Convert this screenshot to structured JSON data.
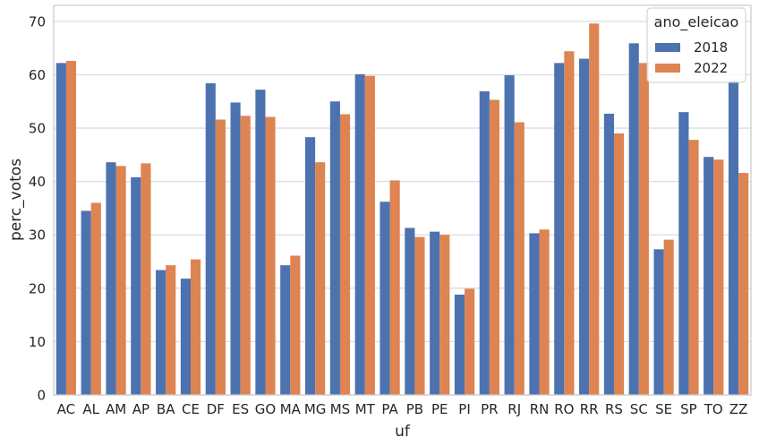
{
  "chart_data": {
    "type": "bar",
    "xlabel": "uf",
    "ylabel": "perc_votos",
    "ylim": [
      0,
      73
    ],
    "yticks": [
      0,
      10,
      20,
      30,
      40,
      50,
      60,
      70
    ],
    "grid": "horizontal",
    "legend_placement": "top-right",
    "legend_title": "ano_eleicao",
    "categories": [
      "AC",
      "AL",
      "AM",
      "AP",
      "BA",
      "CE",
      "DF",
      "ES",
      "GO",
      "MA",
      "MG",
      "MS",
      "MT",
      "PA",
      "PB",
      "PE",
      "PI",
      "PR",
      "RJ",
      "RN",
      "RO",
      "RR",
      "RS",
      "SC",
      "SE",
      "SP",
      "TO",
      "ZZ"
    ],
    "series": [
      {
        "name": "2018",
        "color": "#4c72b0",
        "values": [
          62.2,
          34.5,
          43.6,
          40.8,
          23.4,
          21.8,
          58.4,
          54.8,
          57.2,
          24.3,
          48.3,
          55.0,
          60.1,
          36.2,
          31.3,
          30.6,
          18.8,
          56.9,
          59.9,
          30.3,
          62.2,
          63.0,
          52.7,
          65.9,
          27.3,
          53.0,
          44.6,
          58.8
        ]
      },
      {
        "name": "2022",
        "color": "#dd8452",
        "values": [
          62.6,
          36.0,
          42.9,
          43.4,
          24.3,
          25.4,
          51.6,
          52.3,
          52.1,
          26.1,
          43.6,
          52.6,
          59.8,
          40.2,
          29.6,
          30.0,
          19.9,
          55.3,
          51.1,
          31.0,
          64.4,
          69.6,
          49.0,
          62.2,
          29.1,
          47.8,
          44.1,
          41.6
        ]
      }
    ]
  }
}
